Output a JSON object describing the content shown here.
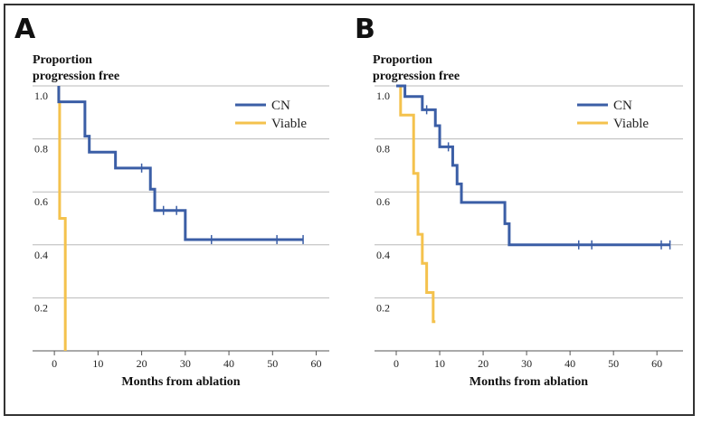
{
  "chart_data": [
    {
      "type": "line",
      "panel_label": "A",
      "ylabel": "Proportion\nprogression free",
      "xlabel": "Months from ablation",
      "xlim": [
        -5,
        63
      ],
      "ylim": [
        0,
        1.0
      ],
      "x_ticks": [
        0,
        10,
        20,
        30,
        40,
        50,
        60
      ],
      "y_ticks": [
        0.2,
        0.4,
        0.6,
        0.8,
        1.0
      ],
      "y_tick_labels": [
        "0.2",
        "0.4",
        "0.6",
        "0.8",
        "1.0"
      ],
      "grid": true,
      "legend_position": "top-right",
      "series": [
        {
          "name": "CN",
          "color": "#3b5ea6",
          "x": [
            1,
            1,
            7,
            7,
            8,
            8,
            14,
            14,
            22,
            22,
            23,
            23,
            30,
            30,
            57
          ],
          "y": [
            1.0,
            0.94,
            0.94,
            0.81,
            0.81,
            0.75,
            0.75,
            0.69,
            0.69,
            0.61,
            0.61,
            0.53,
            0.53,
            0.42,
            0.42
          ],
          "censored_x": [
            20,
            25,
            28,
            36,
            51,
            57
          ],
          "censored_y": [
            0.69,
            0.53,
            0.53,
            0.42,
            0.42,
            0.42
          ]
        },
        {
          "name": "Viable",
          "color": "#f4c24d",
          "x": [
            1,
            1,
            1.2,
            1.2,
            2.5,
            2.5
          ],
          "y": [
            1.0,
            0.94,
            0.94,
            0.5,
            0.5,
            0.0
          ],
          "censored_x": [],
          "censored_y": []
        }
      ]
    },
    {
      "type": "line",
      "panel_label": "B",
      "ylabel": "Proportion\nprogression free",
      "xlabel": "Months from ablation",
      "xlim": [
        -5,
        66
      ],
      "ylim": [
        0,
        1.0
      ],
      "x_ticks": [
        0,
        10,
        20,
        30,
        40,
        50,
        60
      ],
      "y_ticks": [
        0.2,
        0.4,
        0.6,
        0.8,
        1.0
      ],
      "y_tick_labels": [
        "0.2",
        "0.4",
        "0.6",
        "0.8",
        "1.0"
      ],
      "grid": true,
      "legend_position": "top-right",
      "series": [
        {
          "name": "CN",
          "color": "#3b5ea6",
          "x": [
            0,
            2,
            2,
            6,
            6,
            9,
            9,
            10,
            10,
            13,
            13,
            14,
            14,
            15,
            15,
            25,
            25,
            26,
            26,
            63
          ],
          "y": [
            1.0,
            1.0,
            0.96,
            0.96,
            0.91,
            0.91,
            0.85,
            0.85,
            0.77,
            0.77,
            0.7,
            0.7,
            0.63,
            0.63,
            0.56,
            0.56,
            0.48,
            0.48,
            0.4,
            0.4
          ],
          "censored_x": [
            7,
            12,
            42,
            45,
            61,
            63
          ],
          "censored_y": [
            0.91,
            0.77,
            0.4,
            0.4,
            0.4,
            0.4
          ]
        },
        {
          "name": "Viable",
          "color": "#f4c24d",
          "x": [
            0,
            1,
            1,
            4,
            4,
            5,
            5,
            6,
            6,
            7,
            7,
            8.5,
            8.5,
            9
          ],
          "y": [
            1.0,
            1.0,
            0.89,
            0.89,
            0.67,
            0.67,
            0.44,
            0.44,
            0.33,
            0.33,
            0.22,
            0.22,
            0.11,
            0.11
          ],
          "censored_x": [],
          "censored_y": []
        }
      ]
    }
  ]
}
